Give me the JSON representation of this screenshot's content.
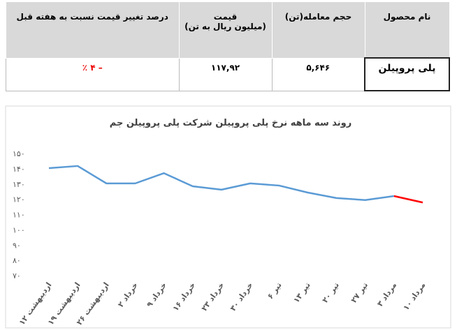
{
  "table": {
    "headers": [
      "نام محصول",
      "حجم معامله(تن)",
      "قیمت\n(میلیون ریال به تن)",
      "درصد تغییر قیمت نسبت به هفته قبل"
    ],
    "rows": [
      [
        "پلی پروپیلن",
        "۵,۶۴۶",
        "۱۱۷,۹۲",
        "– ۴ ٪"
      ]
    ]
  },
  "chart_data": {
    "type": "line",
    "title": "روند سه ماهه نرخ پلی پروپیلن شرکت پلی پروپیلن جم",
    "categories": [
      "۱۲ اردیبهشت",
      "۱۹ اردیبهشت",
      "۲۶ اردیبهشت",
      "۲ خرداد",
      "۹ خرداد",
      "۱۶ خرداد",
      "۲۳ خرداد",
      "۳۰ خرداد",
      "۶ تیر",
      "۱۳ تیر",
      "۲۰ تیر",
      "۲۷ تیر",
      "۳ مرداد",
      "۱۰ مرداد"
    ],
    "values": [
      140.4,
      141.8,
      130.4,
      130.4,
      137.1,
      128.5,
      126.3,
      130.4,
      129,
      124.4,
      120.8,
      119.5,
      122.1,
      117.9
    ],
    "color": "#5b9bd5",
    "last_segment_color": "#ff0000",
    "ylim": [
      70,
      150
    ],
    "yticks": [
      {
        "value": 70,
        "label": "۷۰"
      },
      {
        "value": 80,
        "label": "۸۰"
      },
      {
        "value": 90,
        "label": "۹۰"
      },
      {
        "value": 100,
        "label": "۱۰۰"
      },
      {
        "value": 110,
        "label": "۱۱۰"
      },
      {
        "value": 120,
        "label": "۱۲۰"
      },
      {
        "value": 130,
        "label": "۱۳۰"
      },
      {
        "value": 140,
        "label": "۱۴۰"
      },
      {
        "value": 150,
        "label": "۱۵۰"
      }
    ],
    "grid": false
  }
}
